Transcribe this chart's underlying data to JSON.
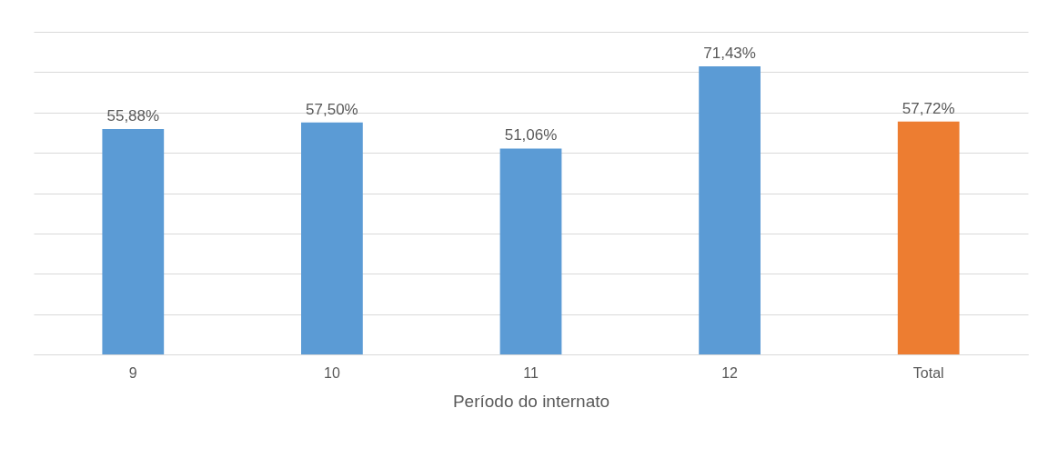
{
  "chart_data": {
    "type": "bar",
    "xlabel": "Período do internato",
    "categories": [
      "9",
      "10",
      "11",
      "12",
      "Total"
    ],
    "values": [
      55.88,
      57.5,
      51.06,
      71.43,
      57.72
    ],
    "colors": [
      "#5b9bd5",
      "#5b9bd5",
      "#5b9bd5",
      "#5b9bd5",
      "#ed7d31"
    ],
    "value_labels": [
      "55,88%",
      "57,50%",
      "51,06%",
      "71,43%",
      "57,72%"
    ],
    "ylim": [
      0,
      80
    ],
    "yticks": [
      {
        "value": 0,
        "label": null
      },
      {
        "value": 10,
        "label": null
      },
      {
        "value": 20,
        "label": null
      },
      {
        "value": 30,
        "label": null
      },
      {
        "value": 40,
        "label": null
      },
      {
        "value": 50,
        "label": null
      },
      {
        "value": 60,
        "label": null
      },
      {
        "value": 70,
        "label": null
      },
      {
        "value": 80,
        "label": null
      }
    ],
    "grid": "y",
    "tick_labels": "x"
  }
}
